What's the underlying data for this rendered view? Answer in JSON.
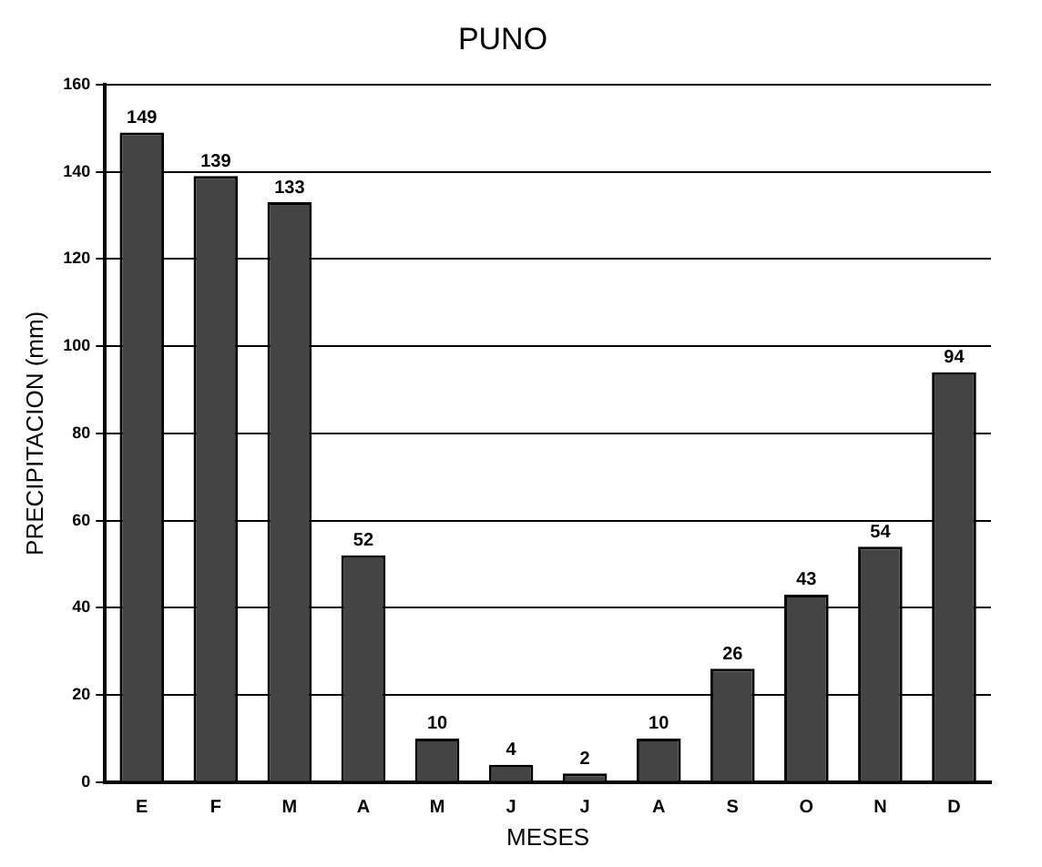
{
  "chart_data": {
    "type": "bar",
    "title": "PUNO",
    "xlabel": "MESES",
    "ylabel": "PRECIPITACION (mm)",
    "categories": [
      "E",
      "F",
      "M",
      "A",
      "M",
      "J",
      "J",
      "A",
      "S",
      "O",
      "N",
      "D"
    ],
    "values": [
      149,
      139,
      133,
      52,
      10,
      4,
      2,
      10,
      26,
      43,
      54,
      94
    ],
    "color": "#444444",
    "ylim": [
      0,
      160
    ],
    "yticks": [
      0,
      20,
      40,
      60,
      80,
      100,
      120,
      140,
      160
    ],
    "grid": "y",
    "data_labels": true
  }
}
